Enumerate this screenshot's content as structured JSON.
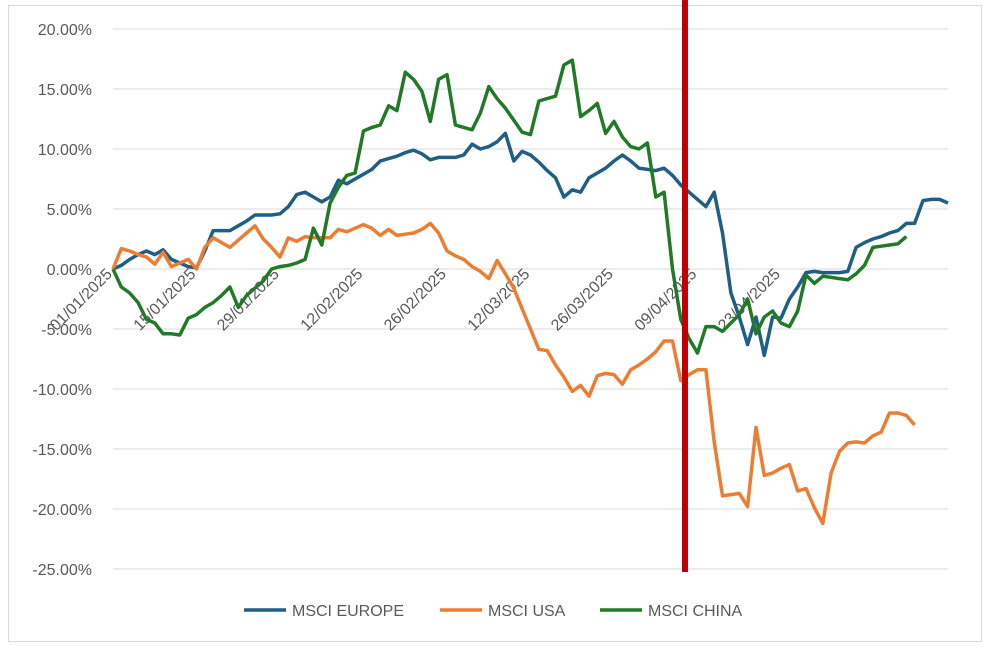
{
  "chart_data": {
    "type": "line",
    "ylim": [
      -25,
      20
    ],
    "y_ticks": [
      "20.00%",
      "15.00%",
      "10.00%",
      "5.00%",
      "0.00%",
      "-5.00%",
      "-10.00%",
      "-15.00%",
      "-20.00%",
      "-25.00%"
    ],
    "y_tick_values": [
      20,
      15,
      10,
      5,
      0,
      -5,
      -10,
      -15,
      -20,
      -25
    ],
    "x_ticks": [
      "01/01/2025",
      "15/01/2025",
      "29/01/2025",
      "12/02/2025",
      "26/02/2025",
      "12/03/2025",
      "26/03/2025",
      "09/04/2025",
      "23/04/2025"
    ],
    "x_tick_index": [
      0,
      10,
      20,
      30,
      40,
      50,
      60,
      70,
      80
    ],
    "grid": "horizontal",
    "legend_position": "bottom",
    "marker_line": {
      "index": 68.5,
      "color": "#c00000"
    },
    "series": [
      {
        "name": "MSCI EUROPE",
        "color": "#1f5f86",
        "values": [
          0,
          0.3,
          0.8,
          1.2,
          1.5,
          1.2,
          1.6,
          0.8,
          0.5,
          0.2,
          0.1,
          1.5,
          3.2,
          3.2,
          3.2,
          3.6,
          4.0,
          4.5,
          4.5,
          4.5,
          4.6,
          5.2,
          6.2,
          6.4,
          6.0,
          5.6,
          6.0,
          7.4,
          7.1,
          7.5,
          7.9,
          8.3,
          9.0,
          9.2,
          9.4,
          9.7,
          9.9,
          9.6,
          9.1,
          9.3,
          9.3,
          9.3,
          9.5,
          10.4,
          10.0,
          10.2,
          10.6,
          11.3,
          9.0,
          9.8,
          9.5,
          8.9,
          8.2,
          7.6,
          6.0,
          6.6,
          6.4,
          7.6,
          8.0,
          8.4,
          9.0,
          9.5,
          9.0,
          8.4,
          8.3,
          8.2,
          8.4,
          7.8,
          7.0,
          6.4,
          5.8,
          5.2,
          6.4,
          3.0,
          -2.0,
          -4.0,
          -6.3,
          -4.0,
          -7.2,
          -4.0,
          -4.1,
          -2.5,
          -1.5,
          -0.3,
          -0.2,
          -0.3,
          -0.3,
          -0.3,
          -0.2,
          1.8,
          2.2,
          2.5,
          2.7,
          3.0,
          3.2,
          3.8,
          3.8,
          5.7,
          5.8,
          5.8,
          5.5
        ]
      },
      {
        "name": "MSCI USA",
        "color": "#ed7d31",
        "values": [
          0,
          1.7,
          1.5,
          1.2,
          1.0,
          0.4,
          1.4,
          0.2,
          0.5,
          0.8,
          0.0,
          1.8,
          2.6,
          2.2,
          1.8,
          2.4,
          3.0,
          3.6,
          2.5,
          1.8,
          1.0,
          2.6,
          2.3,
          2.7,
          2.6,
          2.6,
          2.6,
          3.3,
          3.1,
          3.4,
          3.7,
          3.4,
          2.8,
          3.3,
          2.8,
          2.9,
          3.0,
          3.3,
          3.8,
          3.0,
          1.5,
          1.1,
          0.8,
          0.2,
          -0.2,
          -0.8,
          0.7,
          -0.4,
          -1.6,
          -3.3,
          -5.0,
          -6.7,
          -6.8,
          -8.0,
          -9.0,
          -10.2,
          -9.7,
          -10.6,
          -8.9,
          -8.7,
          -8.8,
          -9.6,
          -8.4,
          -8.0,
          -7.5,
          -6.9,
          -6.0,
          -6.0,
          -9.3,
          -8.8,
          -8.4,
          -8.4,
          -14.4,
          -18.9,
          -18.8,
          -18.7,
          -19.8,
          -13.2,
          -17.2,
          -17.0,
          -16.6,
          -16.3,
          -18.5,
          -18.3,
          -19.9,
          -21.2,
          -17.0,
          -15.2,
          -14.5,
          -14.4,
          -14.5,
          -13.9,
          -13.6,
          -12.0,
          -12.0,
          -12.2,
          -13.0
        ]
      },
      {
        "name": "MSCI CHINA",
        "color": "#217a26",
        "values": [
          0,
          -1.5,
          -2.0,
          -2.8,
          -4.2,
          -4.5,
          -5.4,
          -5.4,
          -5.5,
          -4.1,
          -3.8,
          -3.2,
          -2.8,
          -2.2,
          -1.5,
          -3.2,
          -2.2,
          -1.6,
          -1.0,
          0.0,
          0.2,
          0.3,
          0.5,
          0.8,
          3.4,
          2.0,
          5.5,
          6.8,
          7.8,
          8.0,
          11.5,
          11.8,
          12.0,
          13.6,
          13.2,
          16.4,
          15.8,
          14.8,
          12.3,
          15.8,
          16.2,
          12.0,
          11.8,
          11.6,
          13.0,
          15.2,
          14.2,
          13.4,
          12.4,
          11.4,
          11.2,
          14.0,
          14.2,
          14.4,
          17.0,
          17.4,
          12.7,
          13.2,
          13.8,
          11.3,
          12.3,
          11.0,
          10.2,
          10.0,
          10.5,
          6.0,
          6.4,
          0.0,
          -4.2,
          -5.8,
          -7.0,
          -4.8,
          -4.8,
          -5.2,
          -4.5,
          -3.8,
          -2.5,
          -5.4,
          -4.0,
          -3.5,
          -4.5,
          -4.8,
          -3.5,
          -0.5,
          -1.2,
          -0.6,
          -0.7,
          -0.8,
          -0.9,
          -0.4,
          0.3,
          1.8,
          1.9,
          2.0,
          2.1,
          2.7
        ]
      }
    ]
  }
}
